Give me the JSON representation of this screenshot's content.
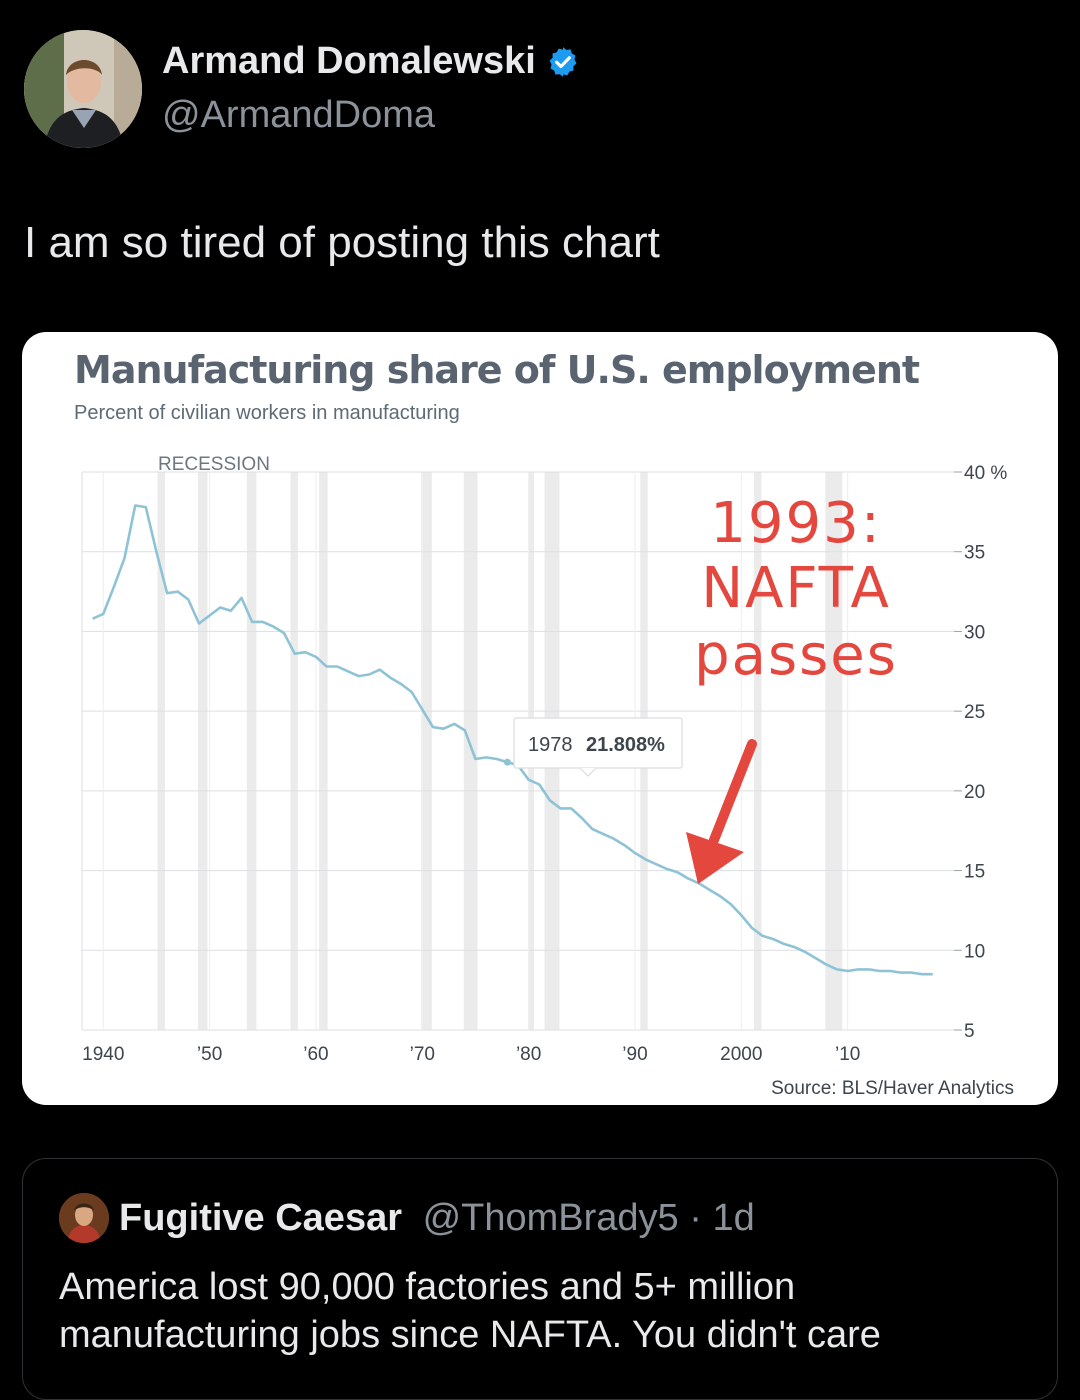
{
  "tweet": {
    "author_name": "Armand Domalewski",
    "author_handle": "@ArmandDoma",
    "verified_icon": "verified-badge-icon",
    "text": "I am so tired of posting this chart"
  },
  "chart_data": {
    "type": "line",
    "title": "Manufacturing share of U.S. employment",
    "subtitle": "Percent of civilian workers in manufacturing",
    "recession_label": "RECESSION",
    "xlim": [
      1938,
      2020
    ],
    "ylim": [
      5,
      40
    ],
    "y_ticks": [
      {
        "value": 40,
        "label": "40 %"
      },
      {
        "value": 35,
        "label": "35"
      },
      {
        "value": 30,
        "label": "30"
      },
      {
        "value": 25,
        "label": "25"
      },
      {
        "value": 20,
        "label": "20"
      },
      {
        "value": 15,
        "label": "15"
      },
      {
        "value": 10,
        "label": "10"
      },
      {
        "value": 5,
        "label": "5"
      }
    ],
    "x_ticks": [
      {
        "value": 1940,
        "label": "1940"
      },
      {
        "value": 1950,
        "label": "’50"
      },
      {
        "value": 1960,
        "label": "’60"
      },
      {
        "value": 1970,
        "label": "’70"
      },
      {
        "value": 1980,
        "label": "’80"
      },
      {
        "value": 1990,
        "label": "’90"
      },
      {
        "value": 2000,
        "label": "2000"
      },
      {
        "value": 2010,
        "label": "’10"
      }
    ],
    "recessions": [
      [
        1945.1,
        1945.8
      ],
      [
        1948.9,
        1949.8
      ],
      [
        1953.5,
        1954.4
      ],
      [
        1957.6,
        1958.3
      ],
      [
        1960.3,
        1961.1
      ],
      [
        1969.9,
        1970.9
      ],
      [
        1973.9,
        1975.2
      ],
      [
        1980.0,
        1980.5
      ],
      [
        1981.5,
        1982.9
      ],
      [
        1990.5,
        1991.2
      ],
      [
        2001.2,
        2001.9
      ],
      [
        2007.9,
        2009.5
      ]
    ],
    "series": [
      {
        "color": "#8ec3d6",
        "x": [
          1939,
          1940,
          1941,
          1942,
          1943,
          1944,
          1945,
          1946,
          1947,
          1948,
          1949,
          1950,
          1951,
          1952,
          1953,
          1954,
          1955,
          1956,
          1957,
          1958,
          1959,
          1960,
          1961,
          1962,
          1963,
          1964,
          1965,
          1966,
          1967,
          1968,
          1969,
          1970,
          1971,
          1972,
          1973,
          1974,
          1975,
          1976,
          1977,
          1978,
          1979,
          1980,
          1981,
          1982,
          1983,
          1984,
          1985,
          1986,
          1987,
          1988,
          1989,
          1990,
          1991,
          1992,
          1993,
          1994,
          1995,
          1996,
          1997,
          1998,
          1999,
          2000,
          2001,
          2002,
          2003,
          2004,
          2005,
          2006,
          2007,
          2008,
          2009,
          2010,
          2011,
          2012,
          2013,
          2014,
          2015,
          2016,
          2017,
          2018
        ],
        "y": [
          30.8,
          31.1,
          32.8,
          34.6,
          37.9,
          37.8,
          35.0,
          32.4,
          32.5,
          32.0,
          30.5,
          31.0,
          31.5,
          31.3,
          32.1,
          30.6,
          30.6,
          30.3,
          29.9,
          28.6,
          28.7,
          28.4,
          27.8,
          27.8,
          27.5,
          27.2,
          27.3,
          27.6,
          27.1,
          26.7,
          26.2,
          25.1,
          24.0,
          23.9,
          24.2,
          23.8,
          22.0,
          22.1,
          22.0,
          21.8,
          21.6,
          20.7,
          20.4,
          19.4,
          18.9,
          18.9,
          18.3,
          17.6,
          17.3,
          17.0,
          16.6,
          16.1,
          15.7,
          15.4,
          15.1,
          14.9,
          14.5,
          14.2,
          13.8,
          13.4,
          12.9,
          12.2,
          11.4,
          10.9,
          10.7,
          10.4,
          10.2,
          9.9,
          9.5,
          9.1,
          8.8,
          8.7,
          8.8,
          8.8,
          8.7,
          8.7,
          8.6,
          8.6,
          8.5,
          8.5
        ]
      }
    ],
    "tooltip": {
      "year": "1978",
      "value": "21.808%"
    },
    "annotation": {
      "line1": "1993:",
      "line2": "NAFTA",
      "line3": "passes",
      "color": "#e4473d"
    },
    "arrow_icon": "red-arrow-icon",
    "source": "Source: BLS/Haver Analytics"
  },
  "quote": {
    "author_name": "Fugitive Caesar",
    "author_handle": "@ThomBrady5",
    "separator": " · ",
    "time": "1d",
    "text": "America lost 90,000 factories and 5+ million manufacturing jobs since NAFTA. You didn't care"
  }
}
